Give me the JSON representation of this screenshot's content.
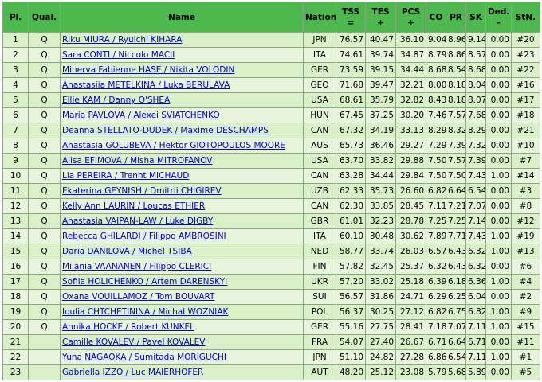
{
  "headers": {
    "pl": "Pl.",
    "qual": "Qual.",
    "name": "Name",
    "nation": "Nation",
    "tss_1": "TSS",
    "tss_2": "=",
    "tes_1": "TES",
    "tes_2": "+",
    "pcs_1": "PCS",
    "pcs_2": "+",
    "co": "CO",
    "pr": "PR",
    "sk": "SK",
    "ded_1": "Ded.",
    "ded_2": "-",
    "stn": "StN."
  },
  "rows": [
    {
      "pl": "1",
      "qual": "Q",
      "name": "Riku MIURA / Ryuichi KIHARA",
      "nation": "JPN",
      "tss": "76.57",
      "tes": "40.47",
      "pcs": "36.10",
      "co": "9.04",
      "pr": "8.96",
      "sk": "9.14",
      "ded": "0.00",
      "stn": "#20"
    },
    {
      "pl": "2",
      "qual": "Q",
      "name": "Sara CONTI / Niccolo MACII",
      "nation": "ITA",
      "tss": "74.61",
      "tes": "39.74",
      "pcs": "34.87",
      "co": "8.79",
      "pr": "8.86",
      "sk": "8.57",
      "ded": "0.00",
      "stn": "#23"
    },
    {
      "pl": "3",
      "qual": "Q",
      "name": "Minerva Fabienne HASE / Nikita VOLODIN",
      "nation": "GER",
      "tss": "73.59",
      "tes": "39.15",
      "pcs": "34.44",
      "co": "8.68",
      "pr": "8.54",
      "sk": "8.68",
      "ded": "0.00",
      "stn": "#22"
    },
    {
      "pl": "4",
      "qual": "Q",
      "name": "Anastasiia METELKINA / Luka BERULAVA",
      "nation": "GEO",
      "tss": "71.68",
      "tes": "39.47",
      "pcs": "32.21",
      "co": "8.00",
      "pr": "8.18",
      "sk": "8.04",
      "ded": "0.00",
      "stn": "#16"
    },
    {
      "pl": "5",
      "qual": "Q",
      "name": "Ellie KAM / Danny O'SHEA",
      "nation": "USA",
      "tss": "68.61",
      "tes": "35.79",
      "pcs": "32.82",
      "co": "8.43",
      "pr": "8.18",
      "sk": "8.07",
      "ded": "0.00",
      "stn": "#17"
    },
    {
      "pl": "6",
      "qual": "Q",
      "name": "Maria PAVLOVA / Alexei SVIATCHENKO",
      "nation": "HUN",
      "tss": "67.45",
      "tes": "37.25",
      "pcs": "30.20",
      "co": "7.46",
      "pr": "7.57",
      "sk": "7.68",
      "ded": "0.00",
      "stn": "#18"
    },
    {
      "pl": "7",
      "qual": "Q",
      "name": "Deanna STELLATO-DUDEK / Maxime DESCHAMPS",
      "nation": "CAN",
      "tss": "67.32",
      "tes": "34.19",
      "pcs": "33.13",
      "co": "8.29",
      "pr": "8.32",
      "sk": "8.29",
      "ded": "0.00",
      "stn": "#21"
    },
    {
      "pl": "8",
      "qual": "Q",
      "name": "Anastasia GOLUBEVA / Hektor GIOTOPOULOS MOORE",
      "nation": "AUS",
      "tss": "65.73",
      "tes": "36.46",
      "pcs": "29.27",
      "co": "7.29",
      "pr": "7.39",
      "sk": "7.32",
      "ded": "0.00",
      "stn": "#10"
    },
    {
      "pl": "9",
      "qual": "Q",
      "name": "Alisa EFIMOVA / Misha MITROFANOV",
      "nation": "USA",
      "tss": "63.70",
      "tes": "33.82",
      "pcs": "29.88",
      "co": "7.50",
      "pr": "7.57",
      "sk": "7.39",
      "ded": "0.00",
      "stn": "#7"
    },
    {
      "pl": "10",
      "qual": "Q",
      "name": "Lia PEREIRA / Trennt MICHAUD",
      "nation": "CAN",
      "tss": "63.28",
      "tes": "34.44",
      "pcs": "29.84",
      "co": "7.50",
      "pr": "7.50",
      "sk": "7.43",
      "ded": "1.00",
      "stn": "#14"
    },
    {
      "pl": "11",
      "qual": "Q",
      "name": "Ekaterina GEYNISH / Dmitrii CHIGIREV",
      "nation": "UZB",
      "tss": "62.33",
      "tes": "35.73",
      "pcs": "26.60",
      "co": "6.82",
      "pr": "6.64",
      "sk": "6.54",
      "ded": "0.00",
      "stn": "#3"
    },
    {
      "pl": "12",
      "qual": "Q",
      "name": "Kelly Ann LAURIN / Loucas ETHIER",
      "nation": "CAN",
      "tss": "62.30",
      "tes": "33.85",
      "pcs": "28.45",
      "co": "7.11",
      "pr": "7.21",
      "sk": "7.07",
      "ded": "0.00",
      "stn": "#8"
    },
    {
      "pl": "13",
      "qual": "Q",
      "name": "Anastasia VAIPAN-LAW / Luke DIGBY",
      "nation": "GBR",
      "tss": "61.01",
      "tes": "32.23",
      "pcs": "28.78",
      "co": "7.25",
      "pr": "7.25",
      "sk": "7.14",
      "ded": "0.00",
      "stn": "#12"
    },
    {
      "pl": "14",
      "qual": "Q",
      "name": "Rebecca GHILARDI / Filippo AMBROSINI",
      "nation": "ITA",
      "tss": "60.10",
      "tes": "30.48",
      "pcs": "30.62",
      "co": "7.89",
      "pr": "7.71",
      "sk": "7.43",
      "ded": "1.00",
      "stn": "#19"
    },
    {
      "pl": "15",
      "qual": "Q",
      "name": "Daria DANILOVA / Michel TSIBA",
      "nation": "NED",
      "tss": "58.77",
      "tes": "33.74",
      "pcs": "26.03",
      "co": "6.57",
      "pr": "6.43",
      "sk": "6.32",
      "ded": "1.00",
      "stn": "#13"
    },
    {
      "pl": "16",
      "qual": "Q",
      "name": "Milania VAANANEN / Filippo CLERICI",
      "nation": "FIN",
      "tss": "57.82",
      "tes": "32.45",
      "pcs": "25.37",
      "co": "6.32",
      "pr": "6.43",
      "sk": "6.32",
      "ded": "0.00",
      "stn": "#6"
    },
    {
      "pl": "17",
      "qual": "Q",
      "name": "Sofiia HOLICHENKO / Artem DARENSKYI",
      "nation": "UKR",
      "tss": "57.20",
      "tes": "33.02",
      "pcs": "25.18",
      "co": "6.39",
      "pr": "6.18",
      "sk": "6.36",
      "ded": "1.00",
      "stn": "#4"
    },
    {
      "pl": "18",
      "qual": "Q",
      "name": "Oxana VOUILLAMOZ / Tom BOUVART",
      "nation": "SUI",
      "tss": "56.57",
      "tes": "31.86",
      "pcs": "24.71",
      "co": "6.29",
      "pr": "6.25",
      "sk": "6.04",
      "ded": "0.00",
      "stn": "#2"
    },
    {
      "pl": "19",
      "qual": "Q",
      "name": "Ioulia CHTCHETININA / Michal WOZNIAK",
      "nation": "POL",
      "tss": "56.37",
      "tes": "30.25",
      "pcs": "27.12",
      "co": "6.82",
      "pr": "6.75",
      "sk": "6.82",
      "ded": "1.00",
      "stn": "#9"
    },
    {
      "pl": "20",
      "qual": "Q",
      "name": "Annika HOCKE / Robert KUNKEL",
      "nation": "GER",
      "tss": "55.16",
      "tes": "27.75",
      "pcs": "28.41",
      "co": "7.18",
      "pr": "7.07",
      "sk": "7.11",
      "ded": "1.00",
      "stn": "#15"
    },
    {
      "pl": "21",
      "qual": "",
      "name": "Camille KOVALEV / Pavel KOVALEV",
      "nation": "FRA",
      "tss": "54.07",
      "tes": "27.40",
      "pcs": "26.67",
      "co": "6.71",
      "pr": "6.64",
      "sk": "6.71",
      "ded": "0.00",
      "stn": "#11"
    },
    {
      "pl": "22",
      "qual": "",
      "name": "Yuna NAGAOKA / Sumitada MORIGUCHI",
      "nation": "JPN",
      "tss": "51.10",
      "tes": "24.82",
      "pcs": "27.28",
      "co": "6.86",
      "pr": "6.54",
      "sk": "7.11",
      "ded": "1.00",
      "stn": "#1"
    },
    {
      "pl": "23",
      "qual": "",
      "name": "Gabriella IZZO / Luc MAIERHOFER",
      "nation": "AUT",
      "tss": "48.20",
      "tes": "25.12",
      "pcs": "23.08",
      "co": "5.79",
      "pr": "5.68",
      "sk": "5.89",
      "ded": "0.00",
      "stn": "#5"
    }
  ]
}
